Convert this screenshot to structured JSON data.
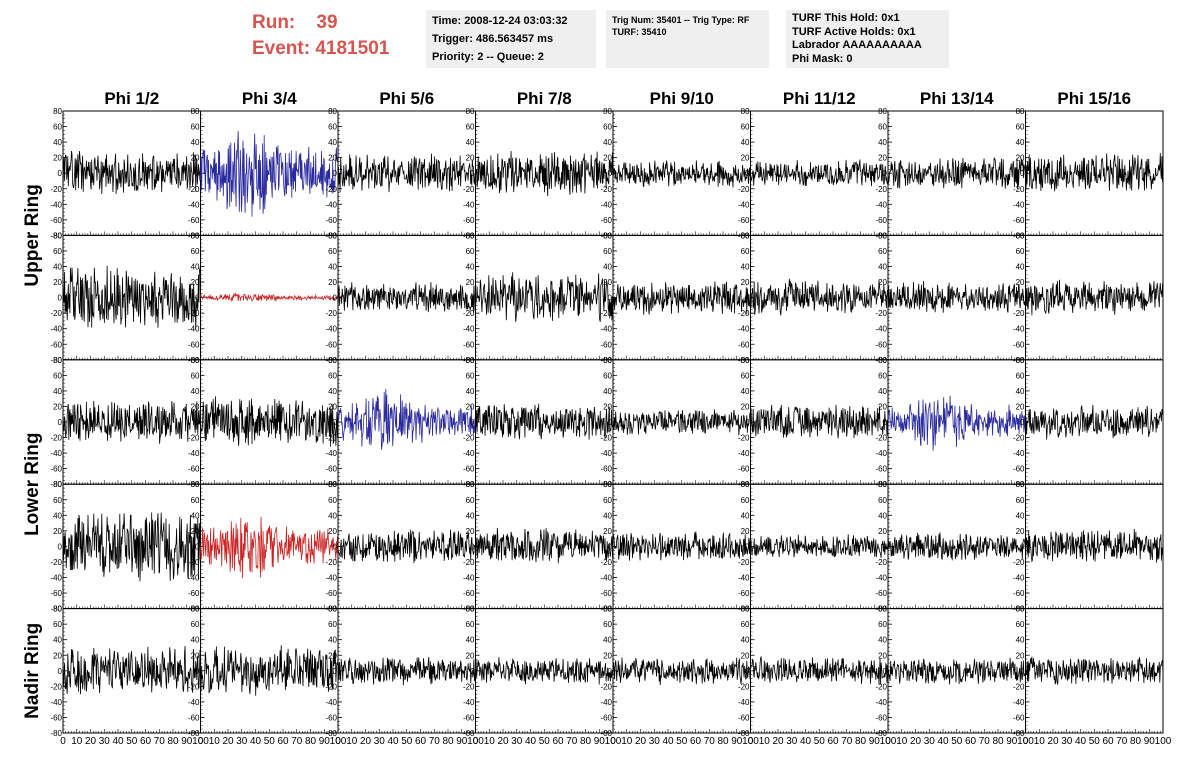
{
  "header": {
    "run_label": "Run:",
    "run_value": "39",
    "event_label": "Event:",
    "event_value": "4181501",
    "info1": [
      "Time: 2008-12-24 03:03:32",
      "Trigger: 486.563457 ms",
      "Priority: 2 -- Queue: 2"
    ],
    "info2": [
      "Trig Num: 35401 -- Trig Type: RF",
      "",
      "TURF: 35410"
    ],
    "info3": [
      "TURF This Hold: 0x1",
      "TURF Active Holds: 0x1",
      "Labrador AAAAAAAAAA",
      "Phi Mask: 0"
    ]
  },
  "colors": {
    "header_red": "#d9534f",
    "info_bg": "#efefef",
    "trace_default": "#000000",
    "trace_blue": "#2a2aa0",
    "trace_red": "#cc2222"
  },
  "chart_data": {
    "type": "line",
    "columns": [
      "Phi 1/2",
      "Phi 3/4",
      "Phi 5/6",
      "Phi 7/8",
      "Phi 9/10",
      "Phi 11/12",
      "Phi 13/14",
      "Phi 15/16"
    ],
    "ring_labels": [
      "Upper Ring",
      "Lower Ring",
      "Nadir Ring"
    ],
    "xlim": [
      0,
      100
    ],
    "ylim": [
      -80,
      80
    ],
    "x_ticks": [
      "0",
      "10",
      "20",
      "30",
      "40",
      "50",
      "60",
      "70",
      "80",
      "90",
      "100"
    ],
    "y_ticks": [
      "80",
      "60",
      "40",
      "20",
      "0",
      "-20",
      "-40",
      "-60",
      "-80"
    ],
    "panels": [
      [
        {
          "color": "black",
          "amp": 22,
          "seed": 11
        },
        {
          "color": "blue",
          "amp": 40,
          "seed": 12
        },
        {
          "color": "black",
          "amp": 20,
          "seed": 13
        },
        {
          "color": "black",
          "amp": 22,
          "seed": 14
        },
        {
          "color": "black",
          "amp": 14,
          "seed": 15
        },
        {
          "color": "black",
          "amp": 14,
          "seed": 16
        },
        {
          "color": "black",
          "amp": 17,
          "seed": 17
        },
        {
          "color": "black",
          "amp": 20,
          "seed": 18
        }
      ],
      [
        {
          "color": "black",
          "amp": 35,
          "seed": 21
        },
        {
          "color": "red",
          "amp": 4,
          "seed": 22
        },
        {
          "color": "black",
          "amp": 15,
          "seed": 23
        },
        {
          "color": "black",
          "amp": 25,
          "seed": 24
        },
        {
          "color": "black",
          "amp": 17,
          "seed": 25
        },
        {
          "color": "black",
          "amp": 18,
          "seed": 26
        },
        {
          "color": "black",
          "amp": 16,
          "seed": 27
        },
        {
          "color": "black",
          "amp": 18,
          "seed": 28
        }
      ],
      [
        {
          "color": "black",
          "amp": 22,
          "seed": 31
        },
        {
          "color": "black",
          "amp": 25,
          "seed": 32
        },
        {
          "color": "blue",
          "amp": 26,
          "seed": 33
        },
        {
          "color": "black",
          "amp": 18,
          "seed": 34
        },
        {
          "color": "black",
          "amp": 14,
          "seed": 35
        },
        {
          "color": "black",
          "amp": 18,
          "seed": 36
        },
        {
          "color": "blue",
          "amp": 24,
          "seed": 37
        },
        {
          "color": "black",
          "amp": 17,
          "seed": 38
        }
      ],
      [
        {
          "color": "black",
          "amp": 35,
          "seed": 41
        },
        {
          "color": "red",
          "amp": 28,
          "seed": 42
        },
        {
          "color": "black",
          "amp": 17,
          "seed": 43
        },
        {
          "color": "black",
          "amp": 18,
          "seed": 44
        },
        {
          "color": "black",
          "amp": 15,
          "seed": 45
        },
        {
          "color": "black",
          "amp": 12,
          "seed": 46
        },
        {
          "color": "black",
          "amp": 14,
          "seed": 47
        },
        {
          "color": "black",
          "amp": 17,
          "seed": 48
        }
      ],
      [
        {
          "color": "black",
          "amp": 25,
          "seed": 51
        },
        {
          "color": "black",
          "amp": 25,
          "seed": 52
        },
        {
          "color": "black",
          "amp": 14,
          "seed": 53
        },
        {
          "color": "black",
          "amp": 14,
          "seed": 54
        },
        {
          "color": "black",
          "amp": 14,
          "seed": 55
        },
        {
          "color": "black",
          "amp": 14,
          "seed": 56
        },
        {
          "color": "black",
          "amp": 14,
          "seed": 57
        },
        {
          "color": "black",
          "amp": 14,
          "seed": 58
        }
      ]
    ]
  }
}
